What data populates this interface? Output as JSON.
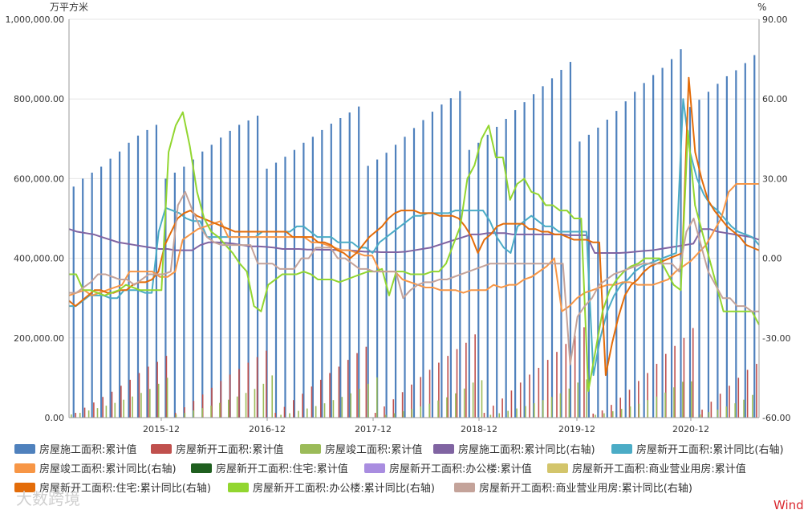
{
  "chart_data": {
    "type": "bar+line",
    "left_unit": "万平方米",
    "right_unit": "%",
    "ylim_left": [
      0,
      1000000
    ],
    "ylim_right": [
      -60,
      90
    ],
    "left_ticks": [
      "1,000,000.00",
      "800,000.00",
      "600,000.00",
      "400,000.00",
      "200,000.00",
      "0.00"
    ],
    "right_ticks": [
      "90.00",
      "60.00",
      "30.00",
      "0.00",
      "-30.00",
      "-60.00"
    ],
    "x_ticks": [
      "2015-12",
      "2016-12",
      "2017-12",
      "2018-12",
      "2019-12",
      "2020-12"
    ],
    "brand": "Wind",
    "watermark": "大数跨境",
    "legend": [
      {
        "key": "s1",
        "label": "房屋施工面积:累计值",
        "color": "#4f81bd"
      },
      {
        "key": "s2",
        "label": "房屋新开工面积:累计值",
        "color": "#c0504d"
      },
      {
        "key": "s3",
        "label": "房屋竣工面积:累计值",
        "color": "#9bbb59"
      },
      {
        "key": "s4",
        "label": "房屋施工面积:累计同比(右轴)",
        "color": "#8064a2"
      },
      {
        "key": "s5",
        "label": "房屋新开工面积:累计同比(右轴)",
        "color": "#4bacc6"
      },
      {
        "key": "s6",
        "label": "房屋竣工面积:累计同比(右轴)",
        "color": "#f79646"
      },
      {
        "key": "s7",
        "label": "房屋新开工面积:住宅:累计值",
        "color": "#1f5f1f"
      },
      {
        "key": "s8",
        "label": "房屋新开工面积:办公楼:累计值",
        "color": "#a98de0"
      },
      {
        "key": "s9",
        "label": "房屋新开工面积:商业营业用房:累计值",
        "color": "#d3c56b"
      },
      {
        "key": "s10",
        "label": "房屋新开工面积:住宅:累计同比(右轴)",
        "color": "#e36c09"
      },
      {
        "key": "s11",
        "label": "房屋新开工面积:办公楼:累计同比(右轴)",
        "color": "#92d630"
      },
      {
        "key": "s12",
        "label": "房屋新开工面积:商业营业用房:累计同比(右轴)",
        "color": "#c4a39a"
      }
    ],
    "series": [
      {
        "key": "s1",
        "axis": "left",
        "kind": "bar",
        "name": "房屋施工面积:累计值",
        "values": [
          580000,
          600000,
          615000,
          630000,
          650000,
          668000,
          690000,
          708000,
          722000,
          735000,
          600000,
          615000,
          630000,
          648000,
          668000,
          685000,
          703000,
          720000,
          735000,
          746000,
          758000,
          625000,
          640000,
          655000,
          672000,
          690000,
          705000,
          722000,
          738000,
          752000,
          766000,
          781000,
          632000,
          648000,
          665000,
          685000,
          705000,
          727000,
          747000,
          768000,
          786000,
          802000,
          820000,
          672000,
          690000,
          710000,
          730000,
          750000,
          772000,
          792000,
          812000,
          832000,
          852000,
          873000,
          893000,
          693000,
          710000,
          728000,
          748000,
          770000,
          794000,
          818000,
          840000,
          860000,
          878000,
          900000,
          925000,
          780000,
          798000,
          818000,
          838000,
          857000,
          872000,
          890000,
          910000
        ]
      },
      {
        "key": "s2",
        "axis": "left",
        "kind": "bar",
        "name": "房屋新开工面积:累计值",
        "values": [
          12000,
          25000,
          38000,
          52000,
          65000,
          80000,
          95000,
          112000,
          128000,
          140000,
          155000,
          12000,
          26000,
          42000,
          58000,
          75000,
          92000,
          108000,
          122000,
          138000,
          152000,
          168000,
          12000,
          27000,
          44000,
          60000,
          78000,
          95000,
          112000,
          128000,
          145000,
          162000,
          178000,
          12000,
          28000,
          46000,
          64000,
          83000,
          102000,
          120000,
          138000,
          155000,
          172000,
          188000,
          209000,
          12000,
          30000,
          48000,
          68000,
          88000,
          108000,
          125000,
          145000,
          165000,
          185000,
          206000,
          227000,
          10000,
          18000,
          32000,
          50000,
          70000,
          92000,
          112000,
          135000,
          160000,
          180000,
          200000,
          225000,
          20000,
          40000,
          60000,
          80000,
          100000,
          120000,
          135000
        ]
      },
      {
        "key": "s3",
        "axis": "left",
        "kind": "bar",
        "name": "房屋竣工面积:累计值",
        "values": [
          8000,
          12000,
          18000,
          24000,
          30000,
          37000,
          45000,
          53000,
          62000,
          72000,
          85000,
          100000,
          8000,
          12000,
          18000,
          24000,
          30000,
          37000,
          45000,
          53000,
          62000,
          72000,
          85000,
          106000,
          7000,
          11000,
          17000,
          23000,
          29000,
          36000,
          44000,
          52000,
          61000,
          72000,
          85000,
          101000,
          7000,
          11000,
          16000,
          22000,
          28000,
          35000,
          43000,
          51000,
          61000,
          73000,
          88000,
          94000,
          7000,
          11000,
          17000,
          23000,
          29000,
          36000,
          44000,
          52000,
          61000,
          73000,
          88000,
          96000,
          7000,
          11000,
          16000,
          22000,
          28000,
          35000,
          44000,
          53000,
          63000,
          76000,
          90000,
          91000,
          8000,
          14000,
          20000,
          28000,
          36000,
          45000,
          57000
        ]
      }
    ],
    "lines": [
      {
        "key": "s4",
        "axis": "right",
        "name": "房屋施工面积:累计同比(右轴)",
        "values": [
          11,
          10,
          9.5,
          9,
          8,
          7,
          6,
          5.5,
          5,
          4.5,
          4,
          3.5,
          3.5,
          3,
          3,
          3,
          5,
          6,
          6,
          5.8,
          5.5,
          5,
          4.5,
          4.5,
          4.3,
          4,
          3.5,
          3.5,
          3.5,
          3.3,
          3.3,
          3.2,
          3.2,
          3.1,
          3,
          2.8,
          2.5,
          2.5,
          2.3,
          2.3,
          2.3,
          2.5,
          3,
          3.5,
          4,
          5,
          6,
          7,
          8,
          9,
          9,
          9.5,
          9.5,
          9.5,
          9,
          9,
          9,
          9,
          9,
          9,
          9,
          8.7,
          8.7,
          8.7,
          2,
          2,
          2,
          2,
          2.2,
          2.5,
          2.8,
          3,
          3.5,
          4,
          4.5,
          5,
          5.5,
          11,
          11,
          10,
          9.5,
          9,
          8.5,
          8,
          7
        ]
      },
      {
        "key": "s5",
        "axis": "right",
        "name": "房屋新开工面积:累计同比(右轴)",
        "values": [
          -18,
          -18,
          -16,
          -14,
          -14,
          -14,
          -15,
          -15,
          -12,
          -12,
          -12,
          -13,
          -13,
          10,
          19,
          18,
          17,
          15,
          14,
          14,
          8,
          8,
          8,
          8,
          8,
          8,
          8,
          8,
          10,
          10,
          10,
          10,
          10,
          12,
          12,
          10,
          8,
          8,
          8,
          6,
          6,
          6,
          4,
          4,
          2,
          6,
          8,
          10,
          12,
          14,
          16,
          16,
          17,
          17,
          17,
          17,
          18,
          18,
          18,
          18,
          18,
          14,
          8,
          4,
          2,
          12,
          14,
          16,
          14,
          12,
          12,
          10,
          10,
          10,
          10,
          10,
          -44,
          -30,
          -20,
          -14,
          -10,
          -8,
          -5,
          -3,
          -2,
          -1,
          0,
          1,
          2,
          60,
          40,
          30,
          24,
          20,
          18,
          15,
          12,
          10,
          9,
          8,
          5
        ]
      },
      {
        "key": "s6",
        "axis": "right",
        "name": "房屋竣工面积:累计同比(右轴)",
        "values": [
          -14,
          -13,
          -12,
          -14,
          -13,
          -12,
          -11,
          -10,
          -5,
          -5,
          -5,
          -5,
          -7,
          -7,
          -5,
          7,
          9,
          11,
          12,
          13,
          14,
          8,
          8,
          8,
          8,
          8,
          8,
          8,
          8,
          8,
          8,
          8,
          6,
          6,
          5,
          4,
          3,
          3,
          2,
          1,
          1,
          -5,
          -5,
          -5,
          -8,
          -9,
          -10,
          -11,
          -11,
          -12,
          -12,
          -12,
          -13,
          -12,
          -12,
          -12,
          -10,
          -11,
          -10,
          -10,
          -8,
          -7,
          -5,
          -3,
          0,
          -20,
          -18,
          -15,
          -13,
          -12,
          -11,
          -10,
          -10,
          -9,
          -9,
          -10,
          -10,
          -10,
          -9,
          -8,
          -5,
          -3,
          -1,
          2,
          5,
          10,
          15,
          25,
          28,
          28,
          28,
          28
        ]
      },
      {
        "key": "s10",
        "axis": "right",
        "name": "房屋新开工面积:住宅:累计同比(右轴)",
        "values": [
          -16,
          -18,
          -16,
          -14,
          -12,
          -12,
          -13,
          -13,
          -12,
          -12,
          -10,
          -9,
          -9,
          -8,
          -5,
          5,
          10,
          15,
          17,
          18,
          16,
          15,
          14,
          13,
          12,
          11,
          10,
          10,
          10,
          10,
          10,
          10,
          10,
          10,
          10,
          8,
          8,
          8,
          8,
          6,
          6,
          5,
          3,
          2,
          0,
          2,
          5,
          8,
          10,
          12,
          15,
          17,
          18,
          18,
          18,
          17,
          17,
          17,
          16,
          16,
          16,
          15,
          12,
          8,
          2,
          7,
          9,
          12,
          13,
          13,
          13,
          13,
          11,
          11,
          10,
          10,
          9,
          9,
          8,
          7,
          7,
          7,
          6,
          6,
          -44,
          -32,
          -22,
          -14,
          -10,
          -8,
          -5,
          -3,
          -2,
          -1,
          0,
          1,
          2,
          68,
          40,
          30,
          22,
          18,
          15,
          12,
          10,
          8,
          5,
          4,
          3
        ]
      },
      {
        "key": "s11",
        "axis": "right",
        "name": "房屋新开工面积:办公楼:累计同比(右轴)",
        "values": [
          -6,
          -6,
          -12,
          -12,
          -13,
          -14,
          -13,
          -12,
          -10,
          -11,
          -12,
          -12,
          -12,
          -12,
          40,
          50,
          55,
          42,
          25,
          15,
          10,
          8,
          5,
          2,
          -2,
          -5,
          -18,
          -20,
          -10,
          -8,
          -6,
          -6,
          -6,
          -5,
          -6,
          -8,
          -8,
          -8,
          -9,
          -8,
          -7,
          -6,
          -5,
          -5,
          -4,
          -14,
          -5,
          -5,
          -6,
          -6,
          -6,
          -5,
          -5,
          -2,
          5,
          12,
          30,
          35,
          45,
          50,
          38,
          38,
          22,
          28,
          30,
          25,
          24,
          20,
          20,
          18,
          18,
          15,
          15,
          -50,
          -35,
          -20,
          -12,
          -8,
          -5,
          -3,
          -2,
          0,
          0,
          0,
          -5,
          -10,
          -12,
          48,
          20,
          10,
          0,
          -10,
          -20,
          -20,
          -20,
          -20,
          -20,
          -25
        ]
      },
      {
        "key": "s12",
        "axis": "right",
        "name": "房屋新开工面积:商业营业用房:累计同比(右轴)",
        "values": [
          -13,
          -13,
          -11,
          -9,
          -6,
          -6,
          -7,
          -8,
          -8,
          -10,
          -8,
          -6,
          -6,
          -6,
          -5,
          20,
          25,
          18,
          12,
          8,
          6,
          5,
          5,
          5,
          5,
          5,
          -2,
          -2,
          -2,
          -4,
          -4,
          -4,
          0,
          0,
          4,
          4,
          4,
          0,
          0,
          -2,
          -4,
          -4,
          -5,
          -5,
          -5,
          -5,
          -15,
          -12,
          -10,
          -9,
          -9,
          -8,
          -8,
          -7,
          -6,
          -5,
          -4,
          -3,
          -2,
          -2,
          -2,
          -2,
          -2,
          -2,
          -2,
          -2,
          -2,
          -2,
          -2,
          -40,
          -22,
          -18,
          -15,
          -10,
          -8,
          -6,
          -5,
          -4,
          -3,
          -2,
          -2,
          -2,
          -2,
          -2,
          -5,
          10,
          15,
          5,
          -5,
          -10,
          -15,
          -15,
          -18,
          -18,
          -20,
          -20
        ]
      }
    ]
  }
}
